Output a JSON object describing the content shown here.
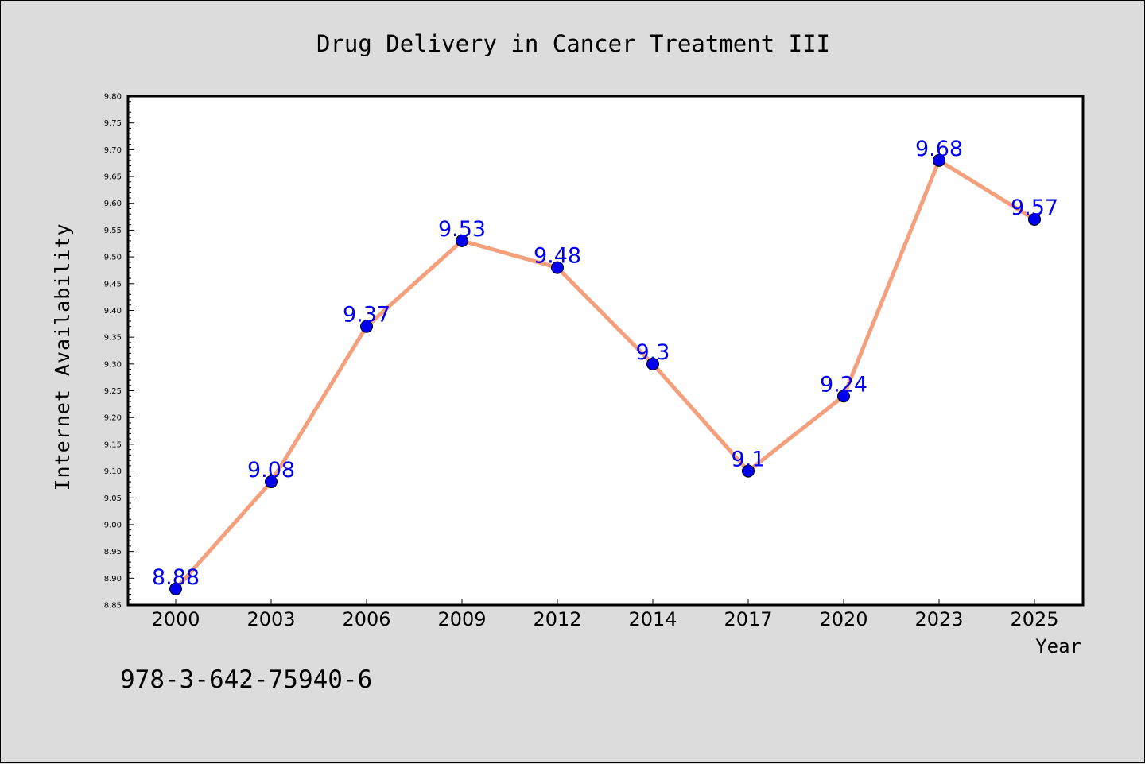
{
  "chart_data": {
    "type": "line",
    "title": "Drug Delivery in Cancer Treatment III",
    "xlabel": "Year",
    "ylabel": "Internet Availability",
    "categories": [
      "2000",
      "2003",
      "2006",
      "2009",
      "2012",
      "2014",
      "2017",
      "2020",
      "2023",
      "2025"
    ],
    "series": [
      {
        "values": [
          8.88,
          9.08,
          9.37,
          9.53,
          9.48,
          9.3,
          9.1,
          9.24,
          9.68,
          9.57
        ],
        "data_labels": [
          "8.88",
          "9.08",
          "9.37",
          "9.53",
          "9.48",
          "9.3",
          "9.1",
          "9.24",
          "9.68",
          "9.57"
        ]
      }
    ],
    "ylim": [
      8.85,
      9.8
    ],
    "yticks": [
      "8.85",
      "8.90",
      "8.95",
      "9.00",
      "9.05",
      "9.10",
      "9.15",
      "9.20",
      "9.25",
      "9.30",
      "9.35",
      "9.40",
      "9.45",
      "9.50",
      "9.55",
      "9.60",
      "9.65",
      "9.70",
      "9.75",
      "9.80"
    ],
    "grid": false,
    "legend": "none",
    "colors": {
      "line": "#f4a07c",
      "marker": "#0000ee",
      "data_label": "#0000ee",
      "figure_background": "#dcdcdc",
      "plot_background": "#ffffff"
    }
  },
  "footer_text": "978-3-642-75940-6"
}
